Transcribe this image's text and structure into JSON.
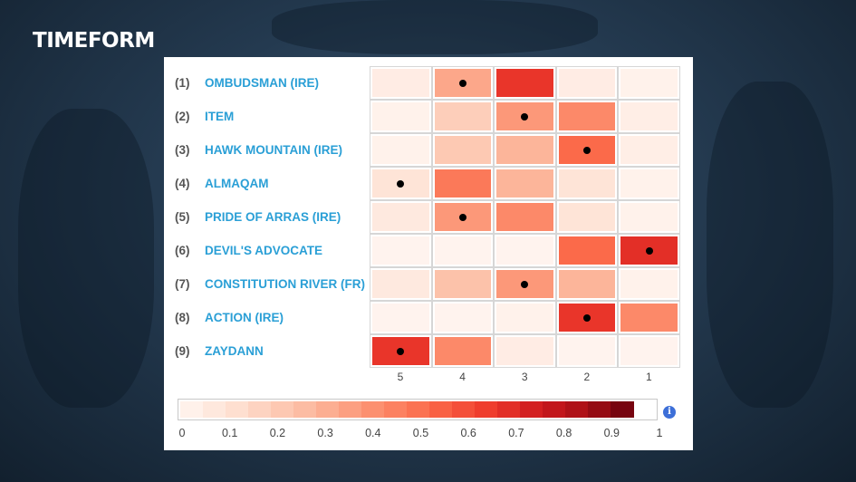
{
  "brand": {
    "logo_text": "TIMEFORM"
  },
  "info_glyph": "i",
  "chart_data": {
    "type": "heatmap",
    "x_categories": [
      "5",
      "4",
      "3",
      "2",
      "1"
    ],
    "rows": [
      {
        "number": "(1)",
        "name": "OMBUDSMAN (IRE)",
        "values": [
          0.05,
          0.35,
          0.7,
          0.05,
          0.02
        ],
        "marker": "4"
      },
      {
        "number": "(2)",
        "name": "ITEM",
        "values": [
          0.02,
          0.2,
          0.4,
          0.45,
          0.04
        ],
        "marker": "3"
      },
      {
        "number": "(3)",
        "name": "HAWK MOUNTAIN (IRE)",
        "values": [
          0.02,
          0.22,
          0.3,
          0.55,
          0.04
        ],
        "marker": "2"
      },
      {
        "number": "(4)",
        "name": "ALMAQAM",
        "values": [
          0.1,
          0.5,
          0.3,
          0.1,
          0.02
        ],
        "marker": "5"
      },
      {
        "number": "(5)",
        "name": "PRIDE OF ARRAS (IRE)",
        "values": [
          0.07,
          0.4,
          0.45,
          0.1,
          0.02
        ],
        "marker": "4"
      },
      {
        "number": "(6)",
        "name": "DEVIL'S ADVOCATE",
        "values": [
          0.01,
          0.01,
          0.01,
          0.55,
          0.72
        ],
        "marker": "1"
      },
      {
        "number": "(7)",
        "name": "CONSTITUTION RIVER (FR)",
        "values": [
          0.07,
          0.25,
          0.4,
          0.3,
          0.02
        ],
        "marker": "3"
      },
      {
        "number": "(8)",
        "name": "ACTION (IRE)",
        "values": [
          0.01,
          0.01,
          0.02,
          0.7,
          0.45
        ],
        "marker": "2"
      },
      {
        "number": "(9)",
        "name": "ZAYDANN",
        "values": [
          0.7,
          0.45,
          0.05,
          0.01,
          0.01
        ],
        "marker": "5"
      }
    ],
    "colorscale": {
      "min": 0,
      "max": 1,
      "ticks": [
        "0",
        "0.1",
        "0.2",
        "0.3",
        "0.4",
        "0.5",
        "0.6",
        "0.7",
        "0.8",
        "0.9",
        "1"
      ],
      "low_color": "#fff5f0",
      "high_color": "#67000d"
    }
  }
}
